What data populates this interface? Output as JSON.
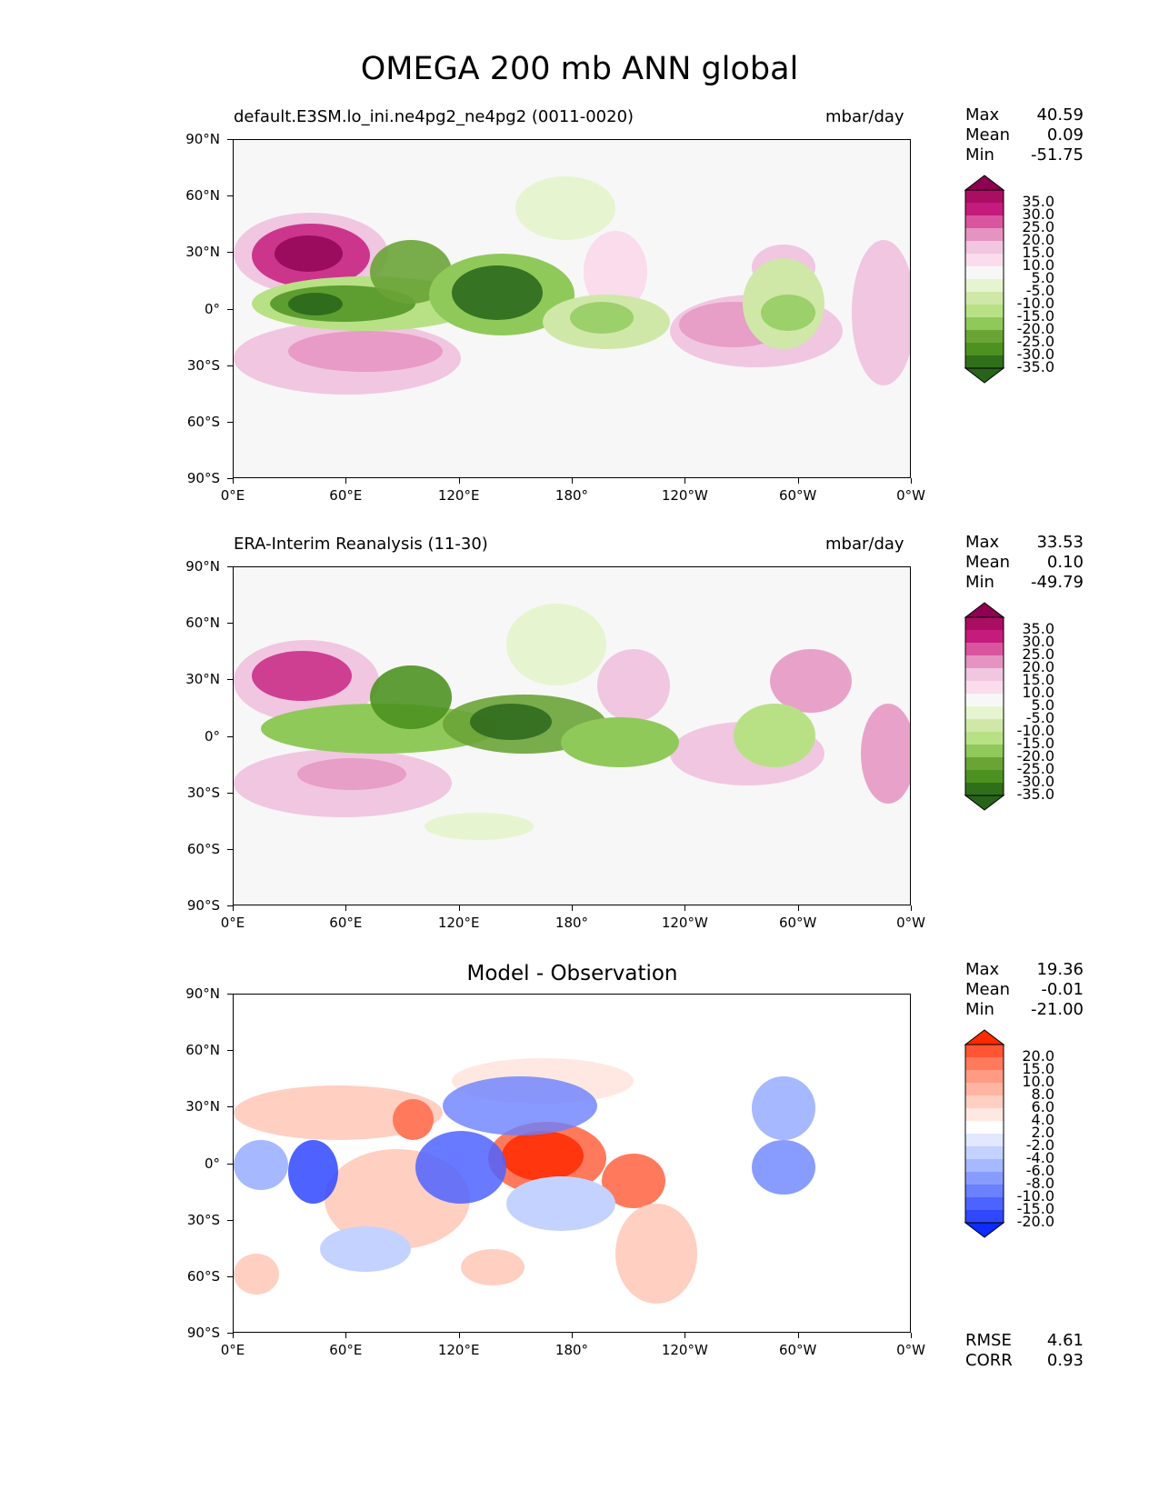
{
  "figure": {
    "title": "OMEGA 200 mb ANN global"
  },
  "axes": {
    "lat_ticks": [
      "90°N",
      "60°N",
      "30°N",
      "0°",
      "30°S",
      "60°S",
      "90°S"
    ],
    "lon_ticks": [
      "0°E",
      "60°E",
      "120°E",
      "180°",
      "120°W",
      "60°W",
      "0°W"
    ]
  },
  "panels": [
    {
      "title_left": "default.E3SM.lo_ini.ne4pg2_ne4pg2 (0011-0020)",
      "title_right": "mbar/day",
      "stats": [
        {
          "label": "Max",
          "value": "40.59"
        },
        {
          "label": "Mean",
          "value": "0.09"
        },
        {
          "label": "Min",
          "value": "-51.75"
        }
      ]
    },
    {
      "title_left": "ERA-Interim Reanalysis (11-30)",
      "title_right": "mbar/day",
      "stats": [
        {
          "label": "Max",
          "value": "33.53"
        },
        {
          "label": "Mean",
          "value": "0.10"
        },
        {
          "label": "Min",
          "value": "-49.79"
        }
      ]
    },
    {
      "title_center": "Model - Observation",
      "stats": [
        {
          "label": "Max",
          "value": "19.36"
        },
        {
          "label": "Mean",
          "value": "-0.01"
        },
        {
          "label": "Min",
          "value": "-21.00"
        }
      ],
      "metrics": [
        {
          "label": "RMSE",
          "value": "4.61"
        },
        {
          "label": "CORR",
          "value": "0.93"
        }
      ]
    }
  ],
  "colorbars": {
    "field": {
      "labels": [
        "35.0",
        "30.0",
        "25.0",
        "20.0",
        "15.0",
        "10.0",
        "5.0",
        "-5.0",
        "-10.0",
        "-15.0",
        "-20.0",
        "-25.0",
        "-30.0",
        "-35.0"
      ],
      "colors": [
        "#8e0152",
        "#a90e62",
        "#c51b7d",
        "#d9559e",
        "#e593c1",
        "#f1c6e0",
        "#fadcec",
        "#f7f7f7",
        "#e6f5d0",
        "#cfe8a8",
        "#b8e186",
        "#8fc95a",
        "#6aa336",
        "#4d9221",
        "#2f6f1a",
        "#276419"
      ]
    },
    "diff": {
      "labels": [
        "20.0",
        "15.0",
        "10.0",
        "8.0",
        "6.0",
        "4.0",
        "2.0",
        "-2.0",
        "-4.0",
        "-6.0",
        "-8.0",
        "-10.0",
        "-15.0",
        "-20.0"
      ],
      "colors": [
        "#ff2a00",
        "#ff5533",
        "#ff7a5c",
        "#ff9b82",
        "#ffb5a1",
        "#ffcfc2",
        "#ffe8e1",
        "#ffffff",
        "#e1e8ff",
        "#c4d2ff",
        "#a6b8ff",
        "#889cff",
        "#6a80ff",
        "#4d63ff",
        "#2f47ff",
        "#0b2bff"
      ]
    }
  },
  "colors": {
    "positive_field": "#c51b7d",
    "negative_field": "#4d9221",
    "positive_diff": "#ff4a2a",
    "negative_diff": "#3355ee"
  }
}
